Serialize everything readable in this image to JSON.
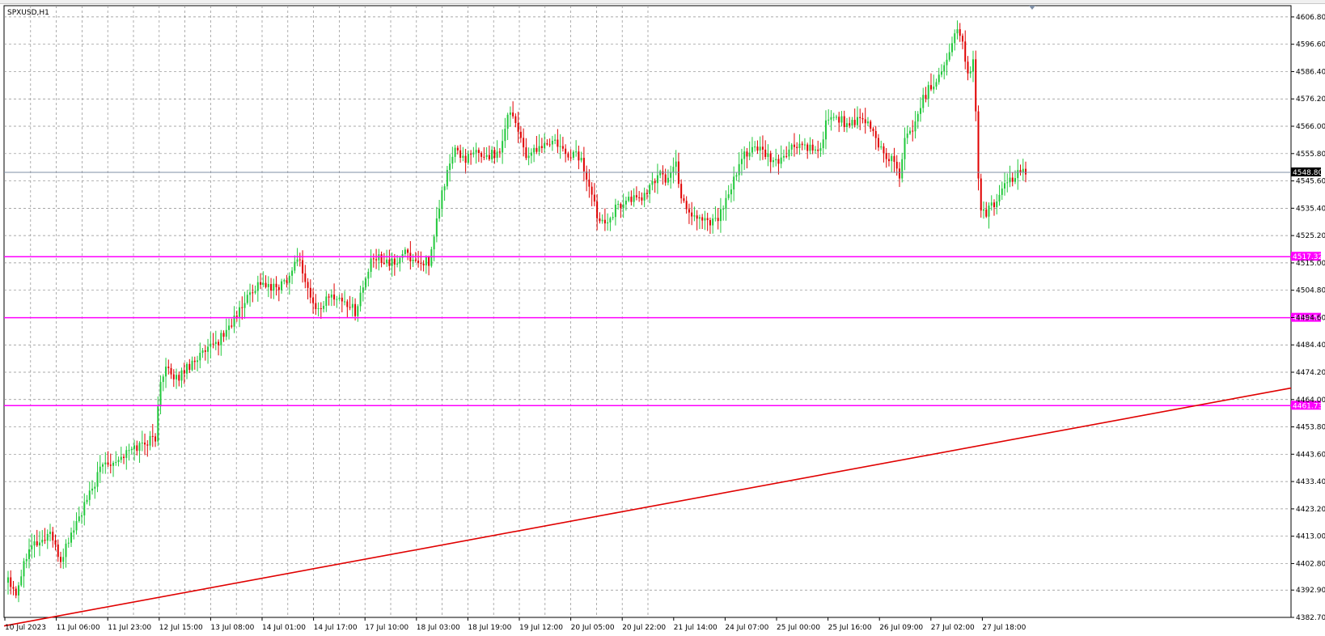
{
  "window": {
    "symbol_label": "SPXUSD,H1"
  },
  "colors": {
    "background": "#ffffff",
    "grid": "#8c8c8c",
    "bull": "#22c83c",
    "bear": "#e00000",
    "level": "#ff00ff",
    "trendline": "#e00000",
    "current_price_line": "#7f8fa6",
    "current_price_tag": "#000000"
  },
  "chart_data": {
    "type": "candlestick",
    "symbol": "SPXUSD",
    "timeframe": "H1",
    "ylim": [
      4382.7,
      4611.0
    ],
    "y_ticks": [
      "4606.80",
      "4596.60",
      "4586.40",
      "4576.20",
      "4566.00",
      "4555.80",
      "4545.60",
      "4535.40",
      "4525.20",
      "4515.00",
      "4504.80",
      "4494.60",
      "4484.40",
      "4474.20",
      "4464.00",
      "4453.80",
      "4443.60",
      "4433.40",
      "4423.20",
      "4413.00",
      "4402.80",
      "4392.90",
      "4382.70"
    ],
    "x_ticks": [
      "10 Jul 2023",
      "11 Jul 06:00",
      "11 Jul 23:00",
      "12 Jul 15:00",
      "13 Jul 08:00",
      "14 Jul 01:00",
      "14 Jul 17:00",
      "17 Jul 10:00",
      "18 Jul 03:00",
      "18 Jul 19:00",
      "19 Jul 12:00",
      "20 Jul 05:00",
      "20 Jul 22:00",
      "21 Jul 14:00",
      "24 Jul 07:00",
      "25 Jul 00:00",
      "25 Jul 16:00",
      "26 Jul 09:00",
      "27 Jul 02:00",
      "27 Jul 18:00"
    ],
    "current_price": {
      "value": 4548.8,
      "label": "4548.80"
    },
    "horizontal_levels": [
      {
        "value": 4517.32,
        "label": "4517.32"
      },
      {
        "value": 4494.54,
        "label": "4494.54"
      },
      {
        "value": 4461.73,
        "label": "4461.73"
      }
    ],
    "trendline": {
      "start_value": 4379.5,
      "end_value": 4468.3
    },
    "anchors": [
      [
        0,
        4398
      ],
      [
        3,
        4392
      ],
      [
        8,
        4410
      ],
      [
        13,
        4411
      ],
      [
        16,
        4415
      ],
      [
        18,
        4408
      ],
      [
        20,
        4404
      ],
      [
        24,
        4414
      ],
      [
        27,
        4420
      ],
      [
        30,
        4426
      ],
      [
        33,
        4433
      ],
      [
        36,
        4440
      ],
      [
        42,
        4442
      ],
      [
        48,
        4446
      ],
      [
        52,
        4448
      ],
      [
        56,
        4450
      ],
      [
        58,
        4470
      ],
      [
        60,
        4478
      ],
      [
        63,
        4470
      ],
      [
        66,
        4474
      ],
      [
        69,
        4477
      ],
      [
        72,
        4480
      ],
      [
        76,
        4482
      ],
      [
        80,
        4486
      ],
      [
        84,
        4491
      ],
      [
        88,
        4497
      ],
      [
        92,
        4504
      ],
      [
        96,
        4508
      ],
      [
        100,
        4505
      ],
      [
        104,
        4507
      ],
      [
        108,
        4512
      ],
      [
        110,
        4518
      ],
      [
        112,
        4512
      ],
      [
        114,
        4505
      ],
      [
        117,
        4497
      ],
      [
        120,
        4500
      ],
      [
        124,
        4503
      ],
      [
        127,
        4501
      ],
      [
        130,
        4499
      ],
      [
        132,
        4497
      ],
      [
        135,
        4506
      ],
      [
        138,
        4515
      ],
      [
        141,
        4517
      ],
      [
        144,
        4516
      ],
      [
        147,
        4514
      ],
      [
        150,
        4519
      ],
      [
        153,
        4517
      ],
      [
        156,
        4515
      ],
      [
        159,
        4516
      ],
      [
        160,
        4512
      ],
      [
        162,
        4525
      ],
      [
        164,
        4536
      ],
      [
        166,
        4545
      ],
      [
        168,
        4552
      ],
      [
        170,
        4557
      ],
      [
        172,
        4555
      ],
      [
        175,
        4554
      ],
      [
        178,
        4556
      ],
      [
        182,
        4555
      ],
      [
        186,
        4556
      ],
      [
        188,
        4560
      ],
      [
        190,
        4572
      ],
      [
        192,
        4570
      ],
      [
        194,
        4565
      ],
      [
        196,
        4558
      ],
      [
        198,
        4553
      ],
      [
        200,
        4557
      ],
      [
        204,
        4559
      ],
      [
        208,
        4560
      ],
      [
        212,
        4555
      ],
      [
        216,
        4556
      ],
      [
        218,
        4553
      ],
      [
        220,
        4547
      ],
      [
        222,
        4540
      ],
      [
        224,
        4533
      ],
      [
        227,
        4531
      ],
      [
        230,
        4534
      ],
      [
        234,
        4538
      ],
      [
        238,
        4539
      ],
      [
        242,
        4540
      ],
      [
        245,
        4544
      ],
      [
        248,
        4550
      ],
      [
        250,
        4546
      ],
      [
        252,
        4548
      ],
      [
        254,
        4552
      ],
      [
        256,
        4540
      ],
      [
        258,
        4536
      ],
      [
        260,
        4533
      ],
      [
        263,
        4532
      ],
      [
        266,
        4531
      ],
      [
        269,
        4531
      ],
      [
        272,
        4535
      ],
      [
        274,
        4540
      ],
      [
        277,
        4548
      ],
      [
        280,
        4556
      ],
      [
        284,
        4558
      ],
      [
        288,
        4555
      ],
      [
        292,
        4552
      ],
      [
        296,
        4556
      ],
      [
        300,
        4559
      ],
      [
        304,
        4558
      ],
      [
        308,
        4555
      ],
      [
        312,
        4570
      ],
      [
        316,
        4569
      ],
      [
        320,
        4566
      ],
      [
        324,
        4568
      ],
      [
        328,
        4566
      ],
      [
        331,
        4559
      ],
      [
        334,
        4555
      ],
      [
        337,
        4553
      ],
      [
        339,
        4548
      ],
      [
        341,
        4560
      ],
      [
        344,
        4566
      ],
      [
        347,
        4574
      ],
      [
        350,
        4580
      ],
      [
        353,
        4583
      ],
      [
        356,
        4590
      ],
      [
        359,
        4596
      ],
      [
        361,
        4603
      ],
      [
        363,
        4597
      ],
      [
        365,
        4585
      ],
      [
        367,
        4590
      ],
      [
        368,
        4570
      ],
      [
        369,
        4545
      ],
      [
        370,
        4536
      ],
      [
        372,
        4534
      ],
      [
        375,
        4537
      ],
      [
        378,
        4542
      ],
      [
        381,
        4545
      ],
      [
        384,
        4550
      ],
      [
        387,
        4548
      ]
    ]
  }
}
